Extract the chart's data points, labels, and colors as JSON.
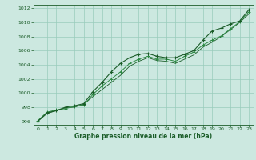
{
  "title": "Graphe pression niveau de la mer (hPa)",
  "bg_color": "#cce8e0",
  "grid_color": "#99ccbb",
  "line_color_dark": "#1a5c28",
  "line_color_mid": "#2d8a44",
  "line_color_light": "#4aaa66",
  "xlim": [
    -0.5,
    23.5
  ],
  "ylim": [
    995.5,
    1012.5
  ],
  "xticks": [
    0,
    1,
    2,
    3,
    4,
    5,
    6,
    7,
    8,
    9,
    10,
    11,
    12,
    13,
    14,
    15,
    16,
    17,
    18,
    19,
    20,
    21,
    22,
    23
  ],
  "yticks": [
    996,
    998,
    1000,
    1002,
    1004,
    1006,
    1008,
    1010,
    1012
  ],
  "series1_x": [
    0,
    1,
    2,
    3,
    4,
    5,
    6,
    7,
    8,
    9,
    10,
    11,
    12,
    13,
    14,
    15,
    16,
    17,
    18,
    19,
    20,
    21,
    22,
    23
  ],
  "series1_y": [
    996.0,
    997.2,
    997.5,
    998.0,
    998.2,
    998.5,
    1000.2,
    1001.5,
    1003.0,
    1004.2,
    1005.0,
    1005.5,
    1005.6,
    1005.2,
    1005.0,
    1005.0,
    1005.5,
    1006.0,
    1007.5,
    1008.8,
    1009.2,
    1009.8,
    1010.2,
    1011.8
  ],
  "series2_x": [
    0,
    1,
    2,
    3,
    4,
    5,
    6,
    7,
    8,
    9,
    10,
    11,
    12,
    13,
    14,
    15,
    16,
    17,
    18,
    19,
    20,
    21,
    22,
    23
  ],
  "series2_y": [
    996.1,
    997.3,
    997.6,
    997.8,
    998.1,
    998.3,
    999.8,
    1001.0,
    1002.0,
    1003.0,
    1004.2,
    1004.8,
    1005.2,
    1004.8,
    1004.8,
    1004.5,
    1005.2,
    1005.8,
    1006.8,
    1007.5,
    1008.1,
    1009.1,
    1010.1,
    1011.5
  ],
  "series3_x": [
    0,
    1,
    2,
    3,
    4,
    5,
    6,
    7,
    8,
    9,
    10,
    11,
    12,
    13,
    14,
    15,
    16,
    17,
    18,
    19,
    20,
    21,
    22,
    23
  ],
  "series3_y": [
    996.0,
    997.1,
    997.5,
    997.9,
    998.0,
    998.4,
    999.5,
    1000.5,
    1001.5,
    1002.5,
    1003.8,
    1004.5,
    1005.0,
    1004.6,
    1004.5,
    1004.2,
    1004.8,
    1005.4,
    1006.5,
    1007.2,
    1008.0,
    1009.0,
    1010.0,
    1011.2
  ]
}
